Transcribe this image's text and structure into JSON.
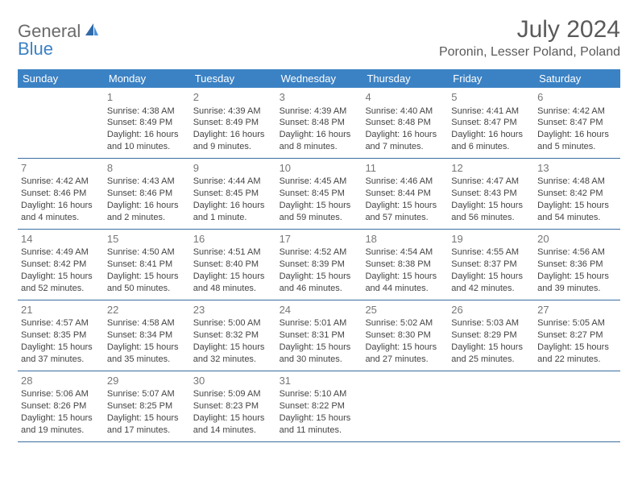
{
  "brand": {
    "part1": "General",
    "part2": "Blue"
  },
  "title": "July 2024",
  "location": "Poronin, Lesser Poland, Poland",
  "colors": {
    "header_bg": "#3b82c4",
    "header_text": "#ffffff",
    "row_border": "#3b6ea0",
    "title_color": "#5a5a5a",
    "body_text": "#444444",
    "day_num_color": "#777777",
    "logo_gray": "#6a6a6a",
    "logo_blue": "#3b82c4",
    "page_bg": "#ffffff"
  },
  "weekdays": [
    "Sunday",
    "Monday",
    "Tuesday",
    "Wednesday",
    "Thursday",
    "Friday",
    "Saturday"
  ],
  "weeks": [
    [
      null,
      {
        "n": "1",
        "sr": "4:38 AM",
        "ss": "8:49 PM",
        "dl": "16 hours and 10 minutes."
      },
      {
        "n": "2",
        "sr": "4:39 AM",
        "ss": "8:49 PM",
        "dl": "16 hours and 9 minutes."
      },
      {
        "n": "3",
        "sr": "4:39 AM",
        "ss": "8:48 PM",
        "dl": "16 hours and 8 minutes."
      },
      {
        "n": "4",
        "sr": "4:40 AM",
        "ss": "8:48 PM",
        "dl": "16 hours and 7 minutes."
      },
      {
        "n": "5",
        "sr": "4:41 AM",
        "ss": "8:47 PM",
        "dl": "16 hours and 6 minutes."
      },
      {
        "n": "6",
        "sr": "4:42 AM",
        "ss": "8:47 PM",
        "dl": "16 hours and 5 minutes."
      }
    ],
    [
      {
        "n": "7",
        "sr": "4:42 AM",
        "ss": "8:46 PM",
        "dl": "16 hours and 4 minutes."
      },
      {
        "n": "8",
        "sr": "4:43 AM",
        "ss": "8:46 PM",
        "dl": "16 hours and 2 minutes."
      },
      {
        "n": "9",
        "sr": "4:44 AM",
        "ss": "8:45 PM",
        "dl": "16 hours and 1 minute."
      },
      {
        "n": "10",
        "sr": "4:45 AM",
        "ss": "8:45 PM",
        "dl": "15 hours and 59 minutes."
      },
      {
        "n": "11",
        "sr": "4:46 AM",
        "ss": "8:44 PM",
        "dl": "15 hours and 57 minutes."
      },
      {
        "n": "12",
        "sr": "4:47 AM",
        "ss": "8:43 PM",
        "dl": "15 hours and 56 minutes."
      },
      {
        "n": "13",
        "sr": "4:48 AM",
        "ss": "8:42 PM",
        "dl": "15 hours and 54 minutes."
      }
    ],
    [
      {
        "n": "14",
        "sr": "4:49 AM",
        "ss": "8:42 PM",
        "dl": "15 hours and 52 minutes."
      },
      {
        "n": "15",
        "sr": "4:50 AM",
        "ss": "8:41 PM",
        "dl": "15 hours and 50 minutes."
      },
      {
        "n": "16",
        "sr": "4:51 AM",
        "ss": "8:40 PM",
        "dl": "15 hours and 48 minutes."
      },
      {
        "n": "17",
        "sr": "4:52 AM",
        "ss": "8:39 PM",
        "dl": "15 hours and 46 minutes."
      },
      {
        "n": "18",
        "sr": "4:54 AM",
        "ss": "8:38 PM",
        "dl": "15 hours and 44 minutes."
      },
      {
        "n": "19",
        "sr": "4:55 AM",
        "ss": "8:37 PM",
        "dl": "15 hours and 42 minutes."
      },
      {
        "n": "20",
        "sr": "4:56 AM",
        "ss": "8:36 PM",
        "dl": "15 hours and 39 minutes."
      }
    ],
    [
      {
        "n": "21",
        "sr": "4:57 AM",
        "ss": "8:35 PM",
        "dl": "15 hours and 37 minutes."
      },
      {
        "n": "22",
        "sr": "4:58 AM",
        "ss": "8:34 PM",
        "dl": "15 hours and 35 minutes."
      },
      {
        "n": "23",
        "sr": "5:00 AM",
        "ss": "8:32 PM",
        "dl": "15 hours and 32 minutes."
      },
      {
        "n": "24",
        "sr": "5:01 AM",
        "ss": "8:31 PM",
        "dl": "15 hours and 30 minutes."
      },
      {
        "n": "25",
        "sr": "5:02 AM",
        "ss": "8:30 PM",
        "dl": "15 hours and 27 minutes."
      },
      {
        "n": "26",
        "sr": "5:03 AM",
        "ss": "8:29 PM",
        "dl": "15 hours and 25 minutes."
      },
      {
        "n": "27",
        "sr": "5:05 AM",
        "ss": "8:27 PM",
        "dl": "15 hours and 22 minutes."
      }
    ],
    [
      {
        "n": "28",
        "sr": "5:06 AM",
        "ss": "8:26 PM",
        "dl": "15 hours and 19 minutes."
      },
      {
        "n": "29",
        "sr": "5:07 AM",
        "ss": "8:25 PM",
        "dl": "15 hours and 17 minutes."
      },
      {
        "n": "30",
        "sr": "5:09 AM",
        "ss": "8:23 PM",
        "dl": "15 hours and 14 minutes."
      },
      {
        "n": "31",
        "sr": "5:10 AM",
        "ss": "8:22 PM",
        "dl": "15 hours and 11 minutes."
      },
      null,
      null,
      null
    ]
  ],
  "labels": {
    "sunrise_prefix": "Sunrise: ",
    "sunset_prefix": "Sunset: ",
    "daylight_prefix": "Daylight: "
  }
}
